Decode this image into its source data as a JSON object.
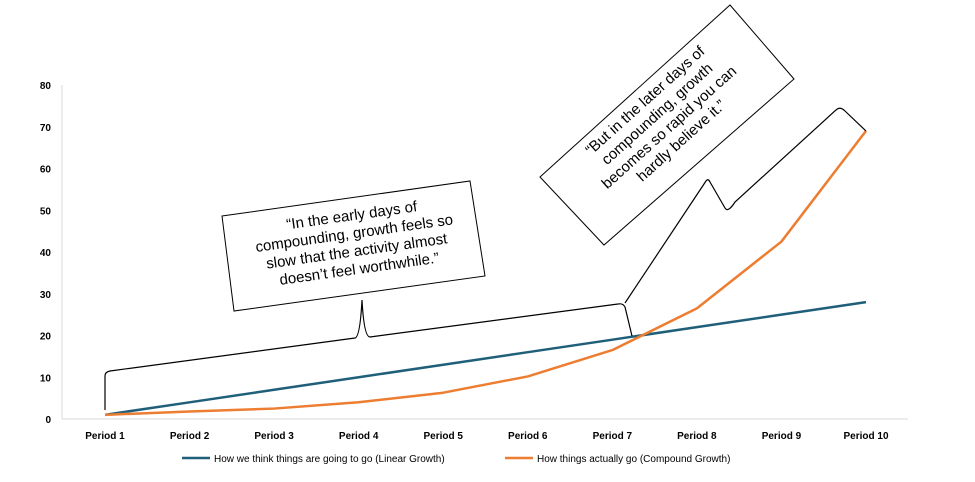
{
  "chart_data": {
    "type": "line",
    "categories": [
      "Period 1",
      "Period 2",
      "Period 3",
      "Period 4",
      "Period 5",
      "Period 6",
      "Period 7",
      "Period 8",
      "Period 9",
      "Period 10"
    ],
    "ylim": [
      0,
      80
    ],
    "yticks": [
      0,
      10,
      20,
      30,
      40,
      50,
      60,
      70,
      80
    ],
    "grid": false,
    "legend_position": "bottom",
    "series": [
      {
        "name": "How we think things are going to go (Linear Growth)",
        "color": "#1f5f7a",
        "values": [
          1,
          4,
          7,
          10,
          13,
          16,
          19,
          22,
          25,
          28
        ]
      },
      {
        "name": "How things actually go (Compound Growth)",
        "color": "#ed7d31",
        "values": [
          1,
          1.8,
          2.5,
          4,
          6.3,
          10.2,
          16.5,
          26.5,
          42.5,
          69
        ]
      }
    ],
    "annotations": [
      {
        "lines": [
          "“In the early days of",
          "compounding, growth feels so",
          "slow that the activity almost",
          "doesn’t feel worthwhile.”"
        ]
      },
      {
        "lines": [
          "“But in the later days of",
          "compounding, growth",
          "becomes so rapid you can",
          "hardly believe it.”"
        ]
      }
    ]
  }
}
